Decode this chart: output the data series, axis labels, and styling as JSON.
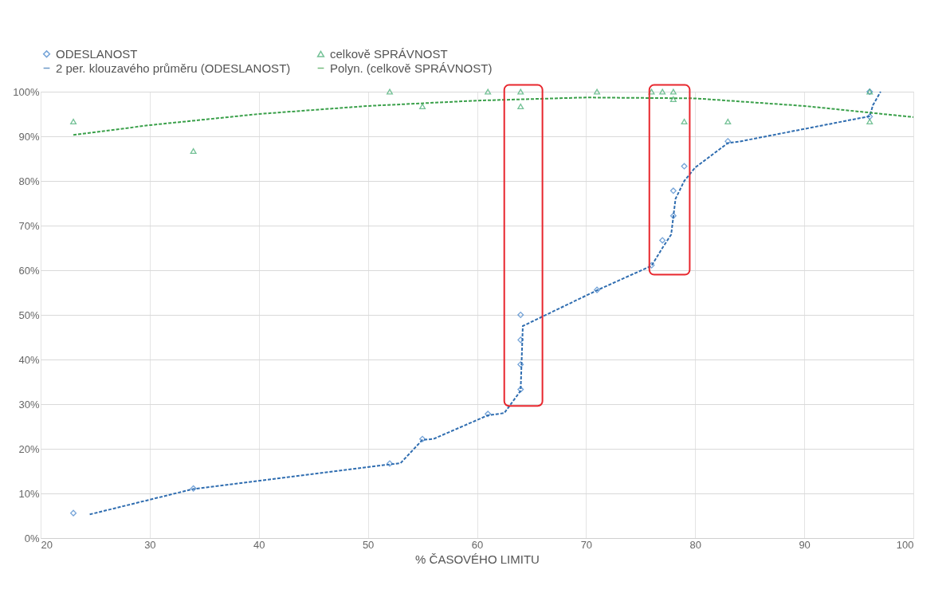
{
  "chart_data": {
    "type": "scatter",
    "xlabel": "% ČASOVÉHO LIMITU",
    "xlim": [
      20,
      100
    ],
    "xticks": [
      20,
      30,
      40,
      50,
      60,
      70,
      80,
      90,
      100
    ],
    "ylim": [
      0,
      100
    ],
    "yticks": [
      {
        "value": 0,
        "label": "0%"
      },
      {
        "value": 10,
        "label": "10%"
      },
      {
        "value": 20,
        "label": "20%"
      },
      {
        "value": 30,
        "label": "30%"
      },
      {
        "value": 40,
        "label": "40%"
      },
      {
        "value": 50,
        "label": "50%"
      },
      {
        "value": 60,
        "label": "60%"
      },
      {
        "value": 70,
        "label": "70%"
      },
      {
        "value": 80,
        "label": "80%"
      },
      {
        "value": 90,
        "label": "90%"
      },
      {
        "value": 100,
        "label": "100%"
      }
    ],
    "grid": true,
    "legend": "top",
    "series": [
      {
        "name": "ODESLANOST",
        "type": "scatter",
        "marker": "diamond",
        "color": "#3a7dc8",
        "x": [
          23,
          34,
          52,
          55,
          61,
          64,
          64,
          64,
          64,
          71,
          76,
          77,
          78,
          78,
          79,
          83,
          96,
          96
        ],
        "values": [
          5.6,
          11.1,
          16.7,
          22.2,
          27.8,
          33.3,
          38.9,
          44.4,
          50,
          55.6,
          61.1,
          66.7,
          72.2,
          77.8,
          83.3,
          88.9,
          94.4,
          100
        ]
      },
      {
        "name": "celkově SPRÁVNOST",
        "type": "scatter",
        "marker": "triangle",
        "color": "#3aa86b",
        "x": [
          23,
          34,
          52,
          55,
          61,
          64,
          64,
          71,
          76,
          77,
          78,
          78,
          79,
          83,
          96,
          96
        ],
        "values": [
          93.3,
          86.7,
          100,
          96.7,
          100,
          100,
          96.7,
          100,
          100,
          100,
          100,
          98.3,
          93.3,
          93.3,
          100,
          93.3
        ]
      },
      {
        "name": "2 per. klouzavého průměru (ODESLANOST)",
        "type": "line",
        "line_style": "dashed",
        "marker": "none",
        "color": "#2f6db0",
        "x": [
          24.5,
          34,
          52,
          53,
          55,
          56,
          61,
          62.5,
          64,
          64.2,
          71,
          76,
          77,
          77.8,
          78,
          78.2,
          79,
          80,
          83,
          84,
          96,
          96.3,
          97
        ],
        "values": [
          5.3,
          11,
          16.5,
          16.8,
          22,
          22.2,
          27.5,
          28,
          33,
          47.5,
          55.5,
          61,
          65,
          68,
          72,
          76,
          80,
          83,
          88.5,
          88.8,
          94.5,
          97,
          100
        ]
      },
      {
        "name": "Polyn. (celkově SPRÁVNOST)",
        "type": "line",
        "line_style": "dashed",
        "marker": "none",
        "color": "#3aa04a",
        "x": [
          23,
          30,
          40,
          50,
          60,
          70,
          80,
          90,
          100
        ],
        "values": [
          90.3,
          92.5,
          95,
          96.8,
          98,
          98.7,
          98.5,
          96.8,
          94.3
        ]
      }
    ]
  }
}
